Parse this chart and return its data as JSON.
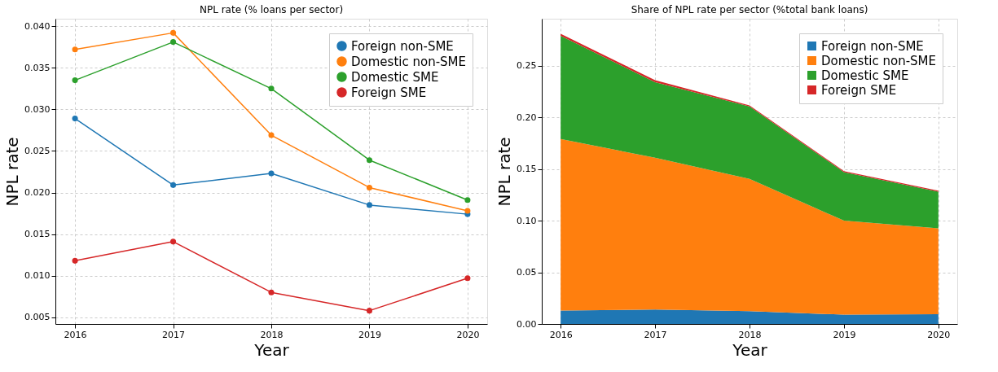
{
  "chart_data": [
    {
      "type": "line",
      "title": "NPL rate (% loans per sector)",
      "xlabel": "Year",
      "ylabel": "NPL rate",
      "x": [
        2016,
        2017,
        2018,
        2019,
        2020
      ],
      "series": [
        {
          "name": "Foreign non-SME",
          "color": "#1f77b4",
          "values": [
            0.0289,
            0.0209,
            0.0223,
            0.0185,
            0.0174
          ]
        },
        {
          "name": "Domestic non-SME",
          "color": "#ff7f0e",
          "values": [
            0.0372,
            0.0392,
            0.0269,
            0.0206,
            0.0178
          ]
        },
        {
          "name": "Domestic SME",
          "color": "#2ca02c",
          "values": [
            0.0335,
            0.0381,
            0.0325,
            0.0239,
            0.0191
          ]
        },
        {
          "name": "Foreign SME",
          "color": "#d62728",
          "values": [
            0.0118,
            0.0141,
            0.008,
            0.0058,
            0.0097
          ]
        }
      ],
      "xlim": [
        2015.8,
        2020.2
      ],
      "xticks": [
        2016,
        2017,
        2018,
        2019,
        2020
      ],
      "ylim": [
        0.0042,
        0.0409
      ],
      "yticks": [
        {
          "value": 0.005,
          "label": "0.005"
        },
        {
          "value": 0.01,
          "label": "0.010"
        },
        {
          "value": 0.015,
          "label": "0.015"
        },
        {
          "value": 0.02,
          "label": "0.020"
        },
        {
          "value": 0.025,
          "label": "0.025"
        },
        {
          "value": 0.03,
          "label": "0.030"
        },
        {
          "value": 0.035,
          "label": "0.035"
        },
        {
          "value": 0.04,
          "label": "0.040"
        }
      ],
      "grid": true,
      "legend": "top right",
      "marker": "circle",
      "line_style": "solid"
    },
    {
      "type": "area",
      "title": "Share of NPL rate per sector (%total bank loans)",
      "xlabel": "Year",
      "ylabel": "NPL rate",
      "x": [
        2016,
        2017,
        2018,
        2019,
        2020
      ],
      "stacked": true,
      "series": [
        {
          "name": "Foreign non-SME",
          "color": "#1f77b4",
          "values": [
            0.013,
            0.014,
            0.0125,
            0.009,
            0.0095
          ]
        },
        {
          "name": "Domestic non-SME",
          "color": "#ff7f0e",
          "values": [
            0.166,
            0.147,
            0.128,
            0.091,
            0.083
          ]
        },
        {
          "name": "Domestic SME",
          "color": "#2ca02c",
          "values": [
            0.1,
            0.073,
            0.07,
            0.047,
            0.0356
          ]
        },
        {
          "name": "Foreign SME",
          "color": "#d62728",
          "values": [
            0.002,
            0.002,
            0.001,
            0.001,
            0.001
          ]
        }
      ],
      "xlim": [
        2015.8,
        2020.2
      ],
      "xticks": [
        2016,
        2017,
        2018,
        2019,
        2020
      ],
      "ylim": [
        0,
        0.2955
      ],
      "yticks": [
        {
          "value": 0,
          "label": "0.00"
        },
        {
          "value": 0.05,
          "label": "0.05"
        },
        {
          "value": 0.1,
          "label": "0.10"
        },
        {
          "value": 0.15,
          "label": "0.15"
        },
        {
          "value": 0.2,
          "label": "0.20"
        },
        {
          "value": 0.25,
          "label": "0.25"
        }
      ],
      "grid": true,
      "legend": "top right"
    }
  ]
}
